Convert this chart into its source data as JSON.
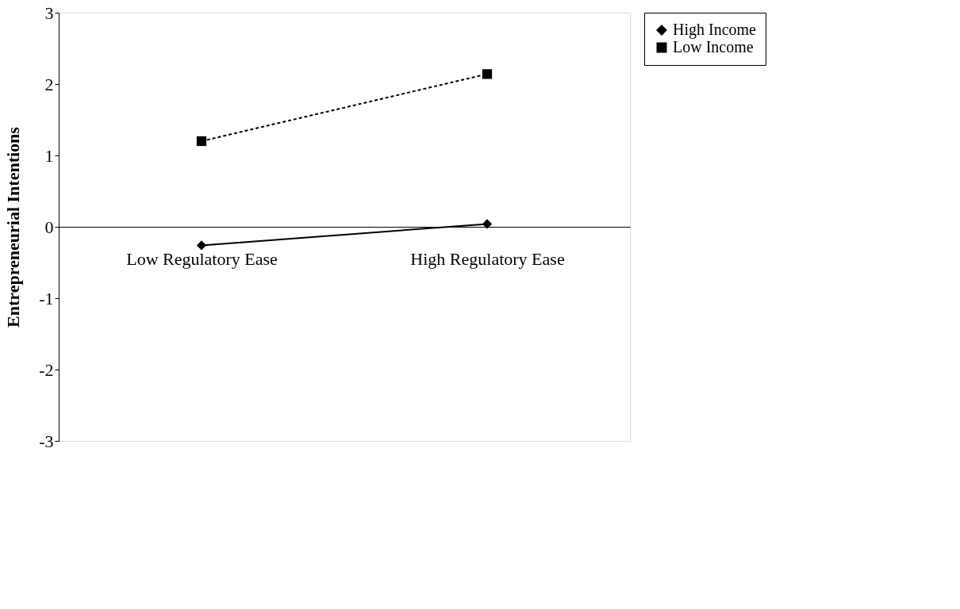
{
  "chart_data": {
    "type": "line",
    "ylabel": "Entrepreneurial Intentions",
    "categories": [
      "Low Regulatory Ease",
      "High Regulatory Ease"
    ],
    "series": [
      {
        "name": "High Income",
        "color": "#000000",
        "values": [
          -0.26,
          0.04
        ],
        "marker": "diamond",
        "line_style": "solid"
      },
      {
        "name": "Low Income",
        "color": "#000000",
        "values": [
          1.2,
          2.14
        ],
        "marker": "square",
        "line_style": "dashed"
      }
    ],
    "ylim": [
      -3,
      3
    ],
    "yticks": [
      -3,
      -2,
      -1,
      0,
      1,
      2,
      3
    ],
    "grid": false,
    "legend": "right"
  }
}
